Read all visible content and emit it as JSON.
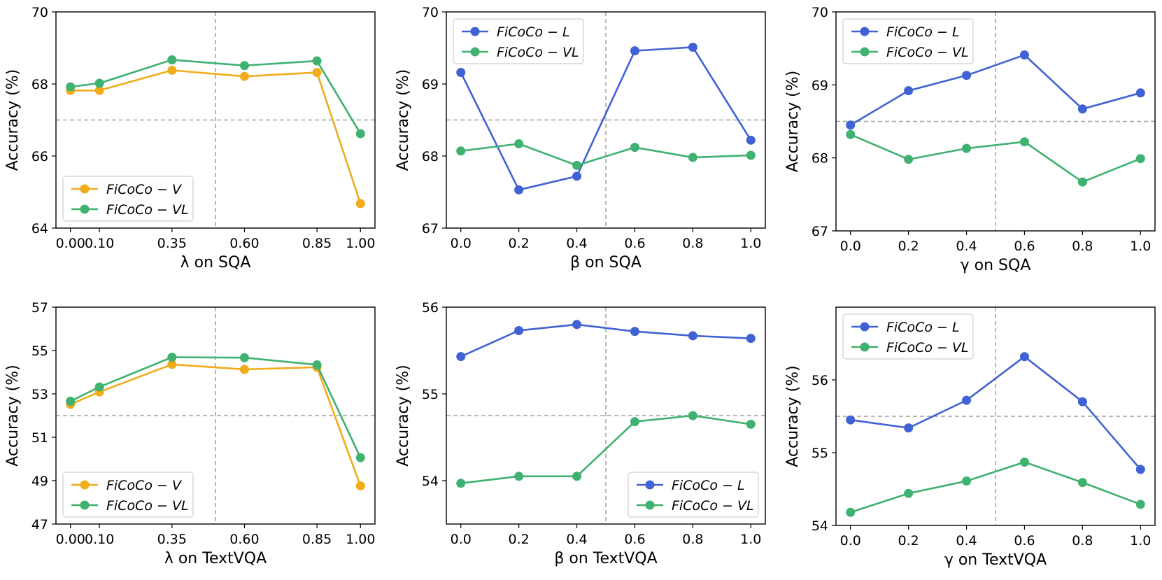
{
  "colors": {
    "V": "#f0ac1a",
    "L": "#4062d4",
    "VL": "#3fb170",
    "ref": "#a0a0a0"
  },
  "chart_data": [
    {
      "type": "line",
      "xlabel": "λ on SQA",
      "ylabel": "Accuracy (%)",
      "x": [
        0.0,
        0.1,
        0.35,
        0.6,
        0.85,
        1.0
      ],
      "xticks": [
        "0.00",
        "0.10",
        "0.35",
        "0.60",
        "0.85",
        "1.00"
      ],
      "xlim": [
        -0.05,
        1.05
      ],
      "ylim": [
        64,
        70
      ],
      "yticks": [
        64,
        66,
        68,
        70
      ],
      "ytick_labels": [
        "64",
        "66",
        "68",
        "70"
      ],
      "ref_x": 0.5,
      "ref_y": 67,
      "legend": "lower-left",
      "series": [
        {
          "name": "FiCoCo − V",
          "color_key": "V",
          "values": [
            67.82,
            67.82,
            68.38,
            68.21,
            68.32,
            64.68
          ]
        },
        {
          "name": "FiCoCo − VL",
          "color_key": "VL",
          "values": [
            67.92,
            68.02,
            68.67,
            68.51,
            68.64,
            66.62
          ]
        }
      ]
    },
    {
      "type": "line",
      "xlabel": "β on SQA",
      "ylabel": "Accuracy (%)",
      "x": [
        0.0,
        0.2,
        0.4,
        0.6,
        0.8,
        1.0
      ],
      "xticks": [
        "0.0",
        "0.2",
        "0.4",
        "0.6",
        "0.8",
        "1.0"
      ],
      "xlim": [
        -0.05,
        1.05
      ],
      "ylim": [
        67,
        70
      ],
      "yticks": [
        67,
        68,
        69,
        70
      ],
      "ytick_labels": [
        "67",
        "68",
        "69",
        "70"
      ],
      "ref_x": 0.5,
      "ref_y": 68.5,
      "legend": "upper-left",
      "series": [
        {
          "name": "FiCoCo − L",
          "color_key": "L",
          "values": [
            69.16,
            67.53,
            67.72,
            69.46,
            69.51,
            68.22
          ]
        },
        {
          "name": "FiCoCo − VL",
          "color_key": "VL",
          "values": [
            68.07,
            68.17,
            67.87,
            68.12,
            67.98,
            68.01
          ]
        }
      ]
    },
    {
      "type": "line",
      "xlabel": "γ on SQA",
      "ylabel": "Accuracy (%)",
      "x": [
        0.0,
        0.2,
        0.4,
        0.6,
        0.8,
        1.0
      ],
      "xticks": [
        "0.0",
        "0.2",
        "0.4",
        "0.6",
        "0.8",
        "1.0"
      ],
      "xlim": [
        -0.05,
        1.05
      ],
      "ylim": [
        67,
        70
      ],
      "yticks": [
        67,
        68,
        69,
        70
      ],
      "ytick_labels": [
        "67",
        "68",
        "69",
        "70"
      ],
      "ref_x": 0.5,
      "ref_y": 68.5,
      "legend": "upper-left",
      "series": [
        {
          "name": "FiCoCo − L",
          "color_key": "L",
          "values": [
            68.45,
            68.92,
            69.13,
            69.41,
            68.67,
            68.89
          ]
        },
        {
          "name": "FiCoCo − VL",
          "color_key": "VL",
          "values": [
            68.32,
            67.98,
            68.13,
            68.22,
            67.67,
            67.99
          ]
        }
      ]
    },
    {
      "type": "line",
      "xlabel": "λ on TextVQA",
      "ylabel": "Accuracy (%)",
      "x": [
        0.0,
        0.1,
        0.35,
        0.6,
        0.85,
        1.0
      ],
      "xticks": [
        "0.00",
        "0.10",
        "0.35",
        "0.60",
        "0.85",
        "1.00"
      ],
      "xlim": [
        -0.05,
        1.05
      ],
      "ylim": [
        47,
        57
      ],
      "yticks": [
        47,
        49,
        51,
        53,
        55,
        57
      ],
      "ytick_labels": [
        "47",
        "49",
        "51",
        "53",
        "55",
        "57"
      ],
      "ref_x": 0.5,
      "ref_y": 52,
      "legend": "lower-left",
      "series": [
        {
          "name": "FiCoCo − V",
          "color_key": "V",
          "values": [
            52.52,
            53.09,
            54.36,
            54.13,
            54.23,
            48.76
          ]
        },
        {
          "name": "FiCoCo − VL",
          "color_key": "VL",
          "values": [
            52.66,
            53.32,
            54.69,
            54.67,
            54.34,
            50.06
          ]
        }
      ]
    },
    {
      "type": "line",
      "xlabel": "β on TextVQA",
      "ylabel": "Accuracy (%)",
      "x": [
        0.0,
        0.2,
        0.4,
        0.6,
        0.8,
        1.0
      ],
      "xticks": [
        "0.0",
        "0.2",
        "0.4",
        "0.6",
        "0.8",
        "1.0"
      ],
      "xlim": [
        -0.05,
        1.05
      ],
      "ylim": [
        53.5,
        56
      ],
      "yticks": [
        54,
        55,
        56
      ],
      "ytick_labels": [
        "54",
        "55",
        "56"
      ],
      "ref_x": 0.5,
      "ref_y": 54.75,
      "legend": "lower-right",
      "series": [
        {
          "name": "FiCoCo − L",
          "color_key": "L",
          "values": [
            55.43,
            55.73,
            55.8,
            55.72,
            55.67,
            55.64
          ]
        },
        {
          "name": "FiCoCo − VL",
          "color_key": "VL",
          "values": [
            53.97,
            54.05,
            54.05,
            54.68,
            54.75,
            54.65
          ]
        }
      ]
    },
    {
      "type": "line",
      "xlabel": "γ on TextVQA",
      "ylabel": "Accuracy (%)",
      "x": [
        0.0,
        0.2,
        0.4,
        0.6,
        0.8,
        1.0
      ],
      "xticks": [
        "0.0",
        "0.2",
        "0.4",
        "0.6",
        "0.8",
        "1.0"
      ],
      "xlim": [
        -0.05,
        1.05
      ],
      "ylim": [
        54,
        57
      ],
      "yticks": [
        54,
        55,
        56
      ],
      "ytick_labels": [
        "54",
        "55",
        "56"
      ],
      "ref_x": 0.5,
      "ref_y": 55.5,
      "legend": "upper-left",
      "series": [
        {
          "name": "FiCoCo − L",
          "color_key": "L",
          "values": [
            55.45,
            55.34,
            55.72,
            56.32,
            55.7,
            54.77
          ]
        },
        {
          "name": "FiCoCo − VL",
          "color_key": "VL",
          "values": [
            54.18,
            54.44,
            54.61,
            54.87,
            54.59,
            54.29
          ]
        }
      ]
    }
  ]
}
